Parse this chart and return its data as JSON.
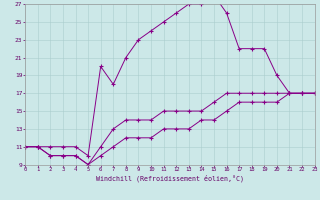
{
  "xlabel": "Windchill (Refroidissement éolien,°C)",
  "background_color": "#cce8e8",
  "line_color": "#880088",
  "grid_color": "#aacece",
  "line1_x": [
    0,
    1,
    2,
    3,
    4,
    5,
    6,
    7,
    8,
    9,
    10,
    11,
    12,
    13,
    14,
    15,
    16,
    17,
    18,
    19,
    20,
    21,
    22,
    23
  ],
  "line1_y": [
    11,
    11,
    11,
    11,
    11,
    10,
    20,
    18,
    21,
    23,
    24,
    25,
    26,
    27,
    27,
    28,
    26,
    22,
    22,
    22,
    19,
    17,
    17,
    17
  ],
  "line2_x": [
    0,
    1,
    2,
    3,
    4,
    5,
    6,
    7,
    8,
    9,
    10,
    11,
    12,
    13,
    14,
    15,
    16,
    17,
    18,
    19,
    20,
    21,
    22,
    23
  ],
  "line2_y": [
    11,
    11,
    10,
    10,
    10,
    9,
    11,
    13,
    14,
    14,
    14,
    15,
    15,
    15,
    15,
    16,
    17,
    17,
    17,
    17,
    17,
    17,
    17,
    17
  ],
  "line3_x": [
    0,
    1,
    2,
    3,
    4,
    5,
    6,
    7,
    8,
    9,
    10,
    11,
    12,
    13,
    14,
    15,
    16,
    17,
    18,
    19,
    20,
    21,
    22,
    23
  ],
  "line3_y": [
    11,
    11,
    10,
    10,
    10,
    9,
    10,
    11,
    12,
    12,
    12,
    13,
    13,
    13,
    14,
    14,
    15,
    16,
    16,
    16,
    16,
    17,
    17,
    17
  ],
  "xlim": [
    0,
    23
  ],
  "ylim": [
    9,
    27
  ],
  "xticks": [
    0,
    1,
    2,
    3,
    4,
    5,
    6,
    7,
    8,
    9,
    10,
    11,
    12,
    13,
    14,
    15,
    16,
    17,
    18,
    19,
    20,
    21,
    22,
    23
  ],
  "yticks": [
    9,
    11,
    13,
    15,
    17,
    19,
    21,
    23,
    25,
    27
  ],
  "tick_color": "#660066",
  "spine_color": "#999999",
  "figsize": [
    3.2,
    2.0
  ],
  "dpi": 100
}
